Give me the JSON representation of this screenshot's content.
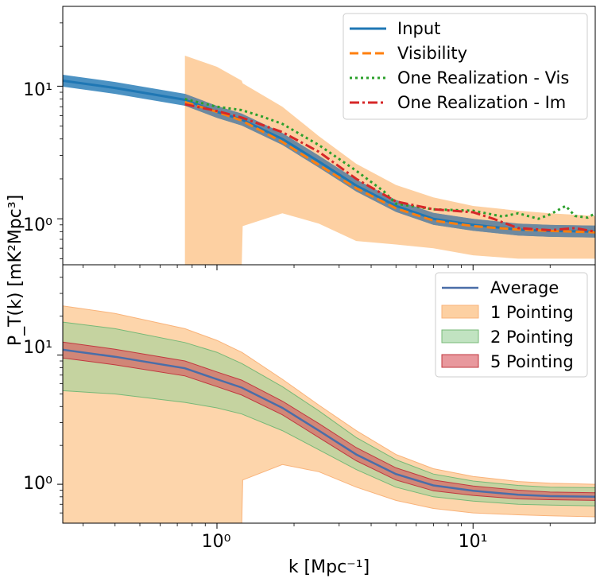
{
  "chart_data": [
    {
      "type": "line",
      "panel": "top",
      "x_scale": "log",
      "y_scale": "log",
      "xlim": [
        0.25,
        30
      ],
      "ylim": [
        0.45,
        40
      ],
      "legend_placement": "upper right",
      "band": {
        "name": "",
        "color": "#fdd0a2",
        "x": [
          0.75,
          1.0,
          1.25,
          1.26,
          1.8,
          2.5,
          3.5,
          5,
          7,
          10,
          15,
          20,
          30
        ],
        "lower": [
          0.45,
          0.45,
          0.45,
          0.88,
          1.1,
          0.92,
          0.68,
          0.64,
          0.6,
          0.53,
          0.5,
          0.5,
          0.5
        ],
        "upper": [
          17,
          14,
          11,
          10.5,
          7,
          4.2,
          2.6,
          1.8,
          1.45,
          1.25,
          1.15,
          1.1,
          1.05
        ]
      },
      "series": [
        {
          "name": "Input",
          "color": "#1f77b4",
          "style": "solid",
          "band_color": "#1f77b4",
          "x": [
            0.25,
            0.4,
            0.75,
            1.0,
            1.25,
            1.8,
            2.5,
            3.5,
            5,
            7,
            10,
            15,
            20,
            30
          ],
          "values": [
            11,
            9.7,
            7.9,
            6.4,
            5.6,
            4.0,
            2.7,
            1.78,
            1.25,
            1.0,
            0.9,
            0.83,
            0.81,
            0.8
          ],
          "band_halfwidth_log": 0.045
        },
        {
          "name": "Visibility",
          "color": "#ff7f0e",
          "style": "dashed",
          "x": [
            0.75,
            1.0,
            1.25,
            1.8,
            2.5,
            3.5,
            5,
            7,
            10,
            15,
            20,
            30
          ],
          "values": [
            7.6,
            6.4,
            5.5,
            3.8,
            2.55,
            1.7,
            1.2,
            0.97,
            0.88,
            0.83,
            0.81,
            0.79
          ]
        },
        {
          "name": "One Realization - Vis",
          "color": "#2ca02c",
          "style": "dotted",
          "x": [
            0.75,
            1.0,
            1.25,
            1.5,
            1.8,
            2.5,
            3.5,
            4.5,
            5,
            7,
            10,
            13,
            15,
            18,
            20,
            23,
            25,
            28,
            30
          ],
          "values": [
            8.0,
            7.0,
            6.6,
            5.9,
            5.2,
            3.6,
            2.3,
            1.6,
            1.3,
            1.18,
            1.15,
            1.04,
            1.1,
            1.0,
            1.08,
            1.25,
            1.05,
            1.02,
            1.1
          ]
        },
        {
          "name": "One Realization - Im",
          "color": "#d62728",
          "style": "dashdot",
          "x": [
            0.75,
            1.0,
            1.25,
            1.8,
            2.5,
            3.5,
            5,
            7,
            10,
            12,
            15,
            20,
            25,
            30
          ],
          "values": [
            7.3,
            6.5,
            5.8,
            4.5,
            3.2,
            2.0,
            1.35,
            1.18,
            1.12,
            1.0,
            0.85,
            0.82,
            0.85,
            0.8
          ]
        }
      ]
    },
    {
      "type": "area",
      "panel": "bottom",
      "x_scale": "log",
      "y_scale": "log",
      "xlim": [
        0.25,
        30
      ],
      "ylim": [
        0.5,
        50
      ],
      "legend_placement": "upper right",
      "series": [
        {
          "name": "Average",
          "color": "#4a6ea8",
          "style": "solid",
          "x": [
            0.25,
            0.4,
            0.75,
            1.0,
            1.25,
            1.8,
            2.5,
            3.5,
            5,
            7,
            10,
            15,
            20,
            30
          ],
          "values": [
            11,
            9.7,
            7.9,
            6.5,
            5.6,
            3.9,
            2.6,
            1.7,
            1.2,
            0.98,
            0.89,
            0.83,
            0.81,
            0.8
          ]
        },
        {
          "name": "1 Pointing",
          "color": "#fdd0a2",
          "edge": "#f9b37a",
          "x": [
            0.25,
            0.4,
            0.75,
            1.0,
            1.25,
            1.26,
            1.8,
            2.5,
            3.5,
            5,
            7,
            10,
            15,
            20,
            30
          ],
          "lower": [
            0.5,
            0.5,
            0.5,
            0.5,
            0.5,
            1.08,
            1.42,
            1.25,
            0.95,
            0.75,
            0.65,
            0.6,
            0.58,
            0.57,
            0.56
          ],
          "upper": [
            24,
            21,
            16,
            13,
            10.5,
            10.4,
            6.5,
            4.1,
            2.6,
            1.7,
            1.32,
            1.15,
            1.05,
            1.02,
            1.0
          ]
        },
        {
          "name": "2 Pointing",
          "color": "#98d198",
          "edge": "#77b877",
          "x": [
            0.25,
            0.4,
            0.75,
            1.0,
            1.25,
            1.8,
            2.5,
            3.5,
            5,
            7,
            10,
            15,
            20,
            30
          ],
          "lower": [
            5.3,
            5.0,
            4.3,
            3.9,
            3.5,
            2.6,
            1.85,
            1.3,
            0.95,
            0.8,
            0.74,
            0.7,
            0.69,
            0.68
          ],
          "upper": [
            18,
            16,
            12.5,
            10.5,
            8.6,
            5.7,
            3.7,
            2.3,
            1.55,
            1.2,
            1.06,
            0.98,
            0.95,
            0.94
          ]
        },
        {
          "name": "5 Pointing",
          "color": "#d9545b",
          "edge": "#c0393f",
          "x": [
            0.25,
            0.4,
            0.75,
            1.0,
            1.25,
            1.8,
            2.5,
            3.5,
            5,
            7,
            10,
            15,
            20,
            30
          ],
          "lower": [
            9.5,
            8.4,
            6.9,
            5.7,
            4.9,
            3.45,
            2.3,
            1.52,
            1.08,
            0.89,
            0.82,
            0.77,
            0.76,
            0.75
          ],
          "upper": [
            12.6,
            11.1,
            9.0,
            7.4,
            6.4,
            4.4,
            2.95,
            1.92,
            1.34,
            1.08,
            0.97,
            0.9,
            0.87,
            0.86
          ]
        }
      ]
    }
  ],
  "labels": {
    "ylabel": "P_T(k) [mK²Mpc³]",
    "xlabel": "k [Mpc⁻¹]",
    "x_ticks": [
      "10⁰",
      "10¹"
    ],
    "top_y_ticks": [
      "10¹",
      "10⁰"
    ],
    "bottom_y_ticks": [
      "10¹",
      "10⁰"
    ]
  },
  "legend_top": [
    "Input",
    "Visibility",
    "One Realization - Vis",
    "One Realization - Im"
  ],
  "legend_bottom": [
    "Average",
    "1 Pointing",
    "2 Pointing",
    "5 Pointing"
  ]
}
